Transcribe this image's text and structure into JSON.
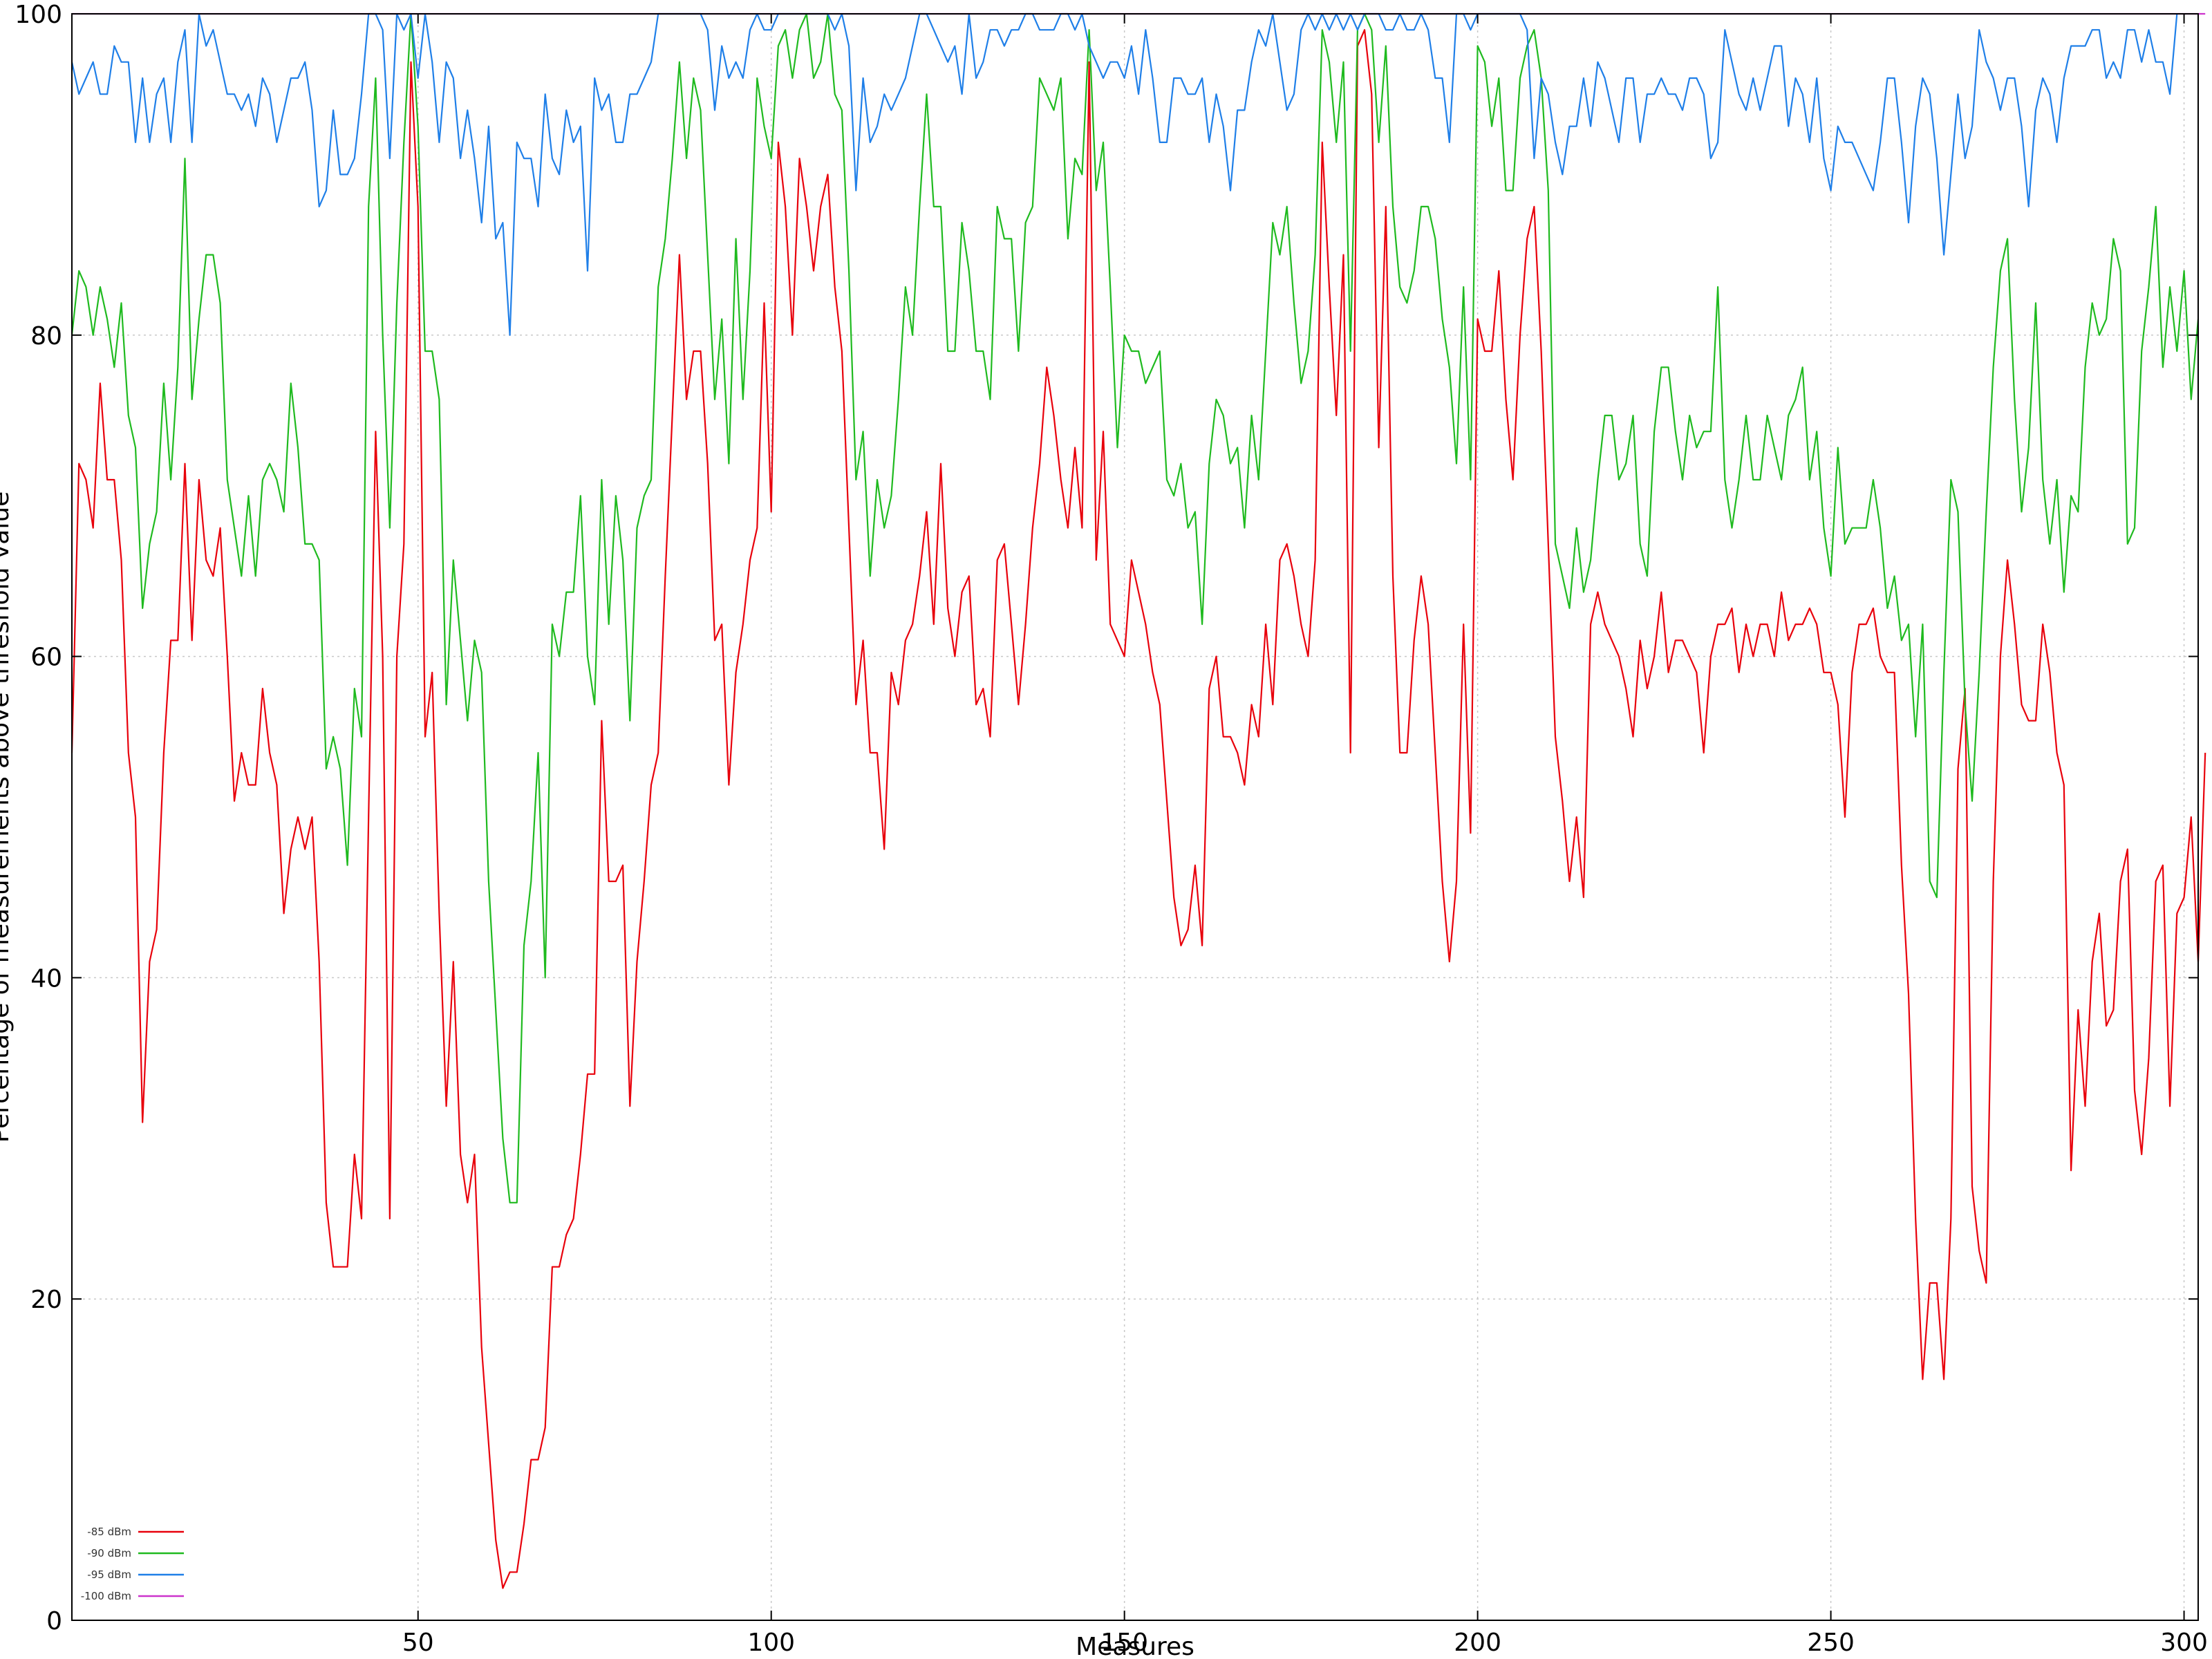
{
  "chart_data": {
    "type": "line",
    "title": "",
    "xlabel": "Measures",
    "ylabel": "Percentage of measurements above threshold value",
    "xlim": [
      1,
      302
    ],
    "ylim": [
      0,
      100
    ],
    "xticks": [
      50,
      100,
      150,
      200,
      250,
      300
    ],
    "yticks": [
      0,
      20,
      40,
      60,
      80,
      100
    ],
    "grid": true,
    "legend_position": "bottom-left",
    "series": [
      {
        "name": "-85 dBm",
        "color": "#e8000b",
        "values": [
          54,
          72,
          71,
          68,
          77,
          71,
          71,
          66,
          54,
          50,
          31,
          41,
          43,
          54,
          61,
          61,
          72,
          61,
          71,
          66,
          65,
          68,
          60,
          51,
          54,
          52,
          52,
          58,
          54,
          52,
          44,
          48,
          50,
          48,
          50,
          41,
          26,
          22,
          22,
          22,
          29,
          25,
          50,
          74,
          60,
          25,
          60,
          67,
          97,
          88,
          55,
          59,
          44,
          32,
          41,
          29,
          26,
          29,
          17,
          11,
          5,
          2,
          3,
          3,
          6,
          10,
          10,
          12,
          22,
          22,
          24,
          25,
          29,
          34,
          34,
          56,
          46,
          46,
          47,
          32,
          41,
          46,
          52,
          54,
          65,
          75,
          85,
          76,
          79,
          79,
          72,
          61,
          62,
          52,
          59,
          62,
          66,
          68,
          82,
          69,
          92,
          88,
          80,
          91,
          88,
          84,
          88,
          90,
          83,
          79,
          68,
          57,
          61,
          54,
          54,
          48,
          59,
          57,
          61,
          62,
          65,
          69,
          62,
          72,
          63,
          60,
          64,
          65,
          57,
          58,
          55,
          66,
          67,
          62,
          57,
          62,
          68,
          72,
          78,
          75,
          71,
          68,
          73,
          68,
          97,
          66,
          74,
          62,
          61,
          60,
          66,
          64,
          62,
          59,
          57,
          51,
          45,
          42,
          43,
          47,
          42,
          58,
          60,
          55,
          55,
          54,
          52,
          57,
          55,
          62,
          57,
          66,
          67,
          65,
          62,
          60,
          66,
          92,
          83,
          75,
          85,
          54,
          98,
          99,
          95,
          73,
          88,
          65,
          54,
          54,
          61,
          65,
          62,
          54,
          46,
          41,
          46,
          62,
          49,
          81,
          79,
          79,
          84,
          76,
          71,
          80,
          86,
          88,
          79,
          67,
          55,
          51,
          46,
          50,
          45,
          62,
          64,
          62,
          61,
          60,
          58,
          55,
          61,
          58,
          60,
          64,
          59,
          61,
          61,
          60,
          59,
          54,
          60,
          62,
          62,
          63,
          59,
          62,
          60,
          62,
          62,
          60,
          64,
          61,
          62,
          62,
          63,
          62,
          59,
          59,
          57,
          50,
          59,
          62,
          62,
          63,
          60,
          59,
          59,
          47,
          39,
          25,
          15,
          21,
          21,
          15,
          25,
          53,
          58,
          27,
          23,
          21,
          46,
          60,
          66,
          62,
          57,
          56,
          56,
          62,
          59,
          54,
          52,
          28,
          38,
          32,
          41,
          44,
          37,
          38,
          46,
          48,
          33,
          29,
          35,
          46,
          47,
          32,
          44,
          45,
          50,
          41,
          54
        ]
      },
      {
        "name": "-90 dBm",
        "color": "#1fba1f",
        "values": [
          80,
          84,
          83,
          80,
          83,
          81,
          78,
          82,
          75,
          73,
          63,
          67,
          69,
          77,
          71,
          78,
          91,
          76,
          81,
          85,
          85,
          82,
          71,
          68,
          65,
          70,
          65,
          71,
          72,
          71,
          69,
          77,
          73,
          67,
          67,
          66,
          53,
          55,
          53,
          47,
          58,
          55,
          88,
          96,
          80,
          68,
          82,
          92,
          100,
          93,
          79,
          79,
          76,
          57,
          66,
          61,
          56,
          61,
          59,
          46,
          38,
          30,
          26,
          26,
          42,
          46,
          54,
          40,
          62,
          60,
          64,
          64,
          70,
          60,
          57,
          71,
          62,
          70,
          66,
          56,
          68,
          70,
          71,
          83,
          86,
          91,
          97,
          91,
          96,
          94,
          85,
          76,
          81,
          72,
          86,
          76,
          84,
          96,
          93,
          91,
          98,
          99,
          96,
          99,
          100,
          96,
          97,
          100,
          95,
          94,
          84,
          71,
          74,
          65,
          71,
          68,
          70,
          76,
          83,
          80,
          88,
          95,
          88,
          88,
          79,
          79,
          87,
          84,
          79,
          79,
          76,
          88,
          86,
          86,
          79,
          87,
          88,
          96,
          95,
          94,
          96,
          86,
          91,
          90,
          99,
          89,
          92,
          83,
          73,
          80,
          79,
          79,
          77,
          78,
          79,
          71,
          70,
          72,
          68,
          69,
          62,
          72,
          76,
          75,
          72,
          73,
          68,
          75,
          71,
          79,
          87,
          85,
          88,
          82,
          77,
          79,
          85,
          99,
          97,
          92,
          97,
          79,
          99,
          100,
          99,
          92,
          98,
          88,
          83,
          82,
          84,
          88,
          88,
          86,
          81,
          78,
          72,
          83,
          71,
          98,
          97,
          93,
          96,
          89,
          89,
          96,
          98,
          99,
          96,
          89,
          67,
          65,
          63,
          68,
          64,
          66,
          71,
          75,
          75,
          71,
          72,
          75,
          67,
          65,
          74,
          78,
          78,
          74,
          71,
          75,
          73,
          74,
          74,
          83,
          71,
          68,
          71,
          75,
          71,
          71,
          75,
          73,
          71,
          75,
          76,
          78,
          71,
          74,
          68,
          65,
          73,
          67,
          68,
          68,
          68,
          71,
          68,
          63,
          65,
          61,
          62,
          55,
          62,
          46,
          45,
          59,
          71,
          69,
          57,
          51,
          59,
          69,
          78,
          84,
          86,
          76,
          69,
          73,
          82,
          71,
          67,
          71,
          64,
          70,
          69,
          78,
          82,
          80,
          81,
          86,
          84,
          67,
          68,
          79,
          83,
          88,
          78,
          83,
          79,
          84,
          76,
          81
        ]
      },
      {
        "name": "-95 dBm",
        "color": "#1f7fe8",
        "values": [
          97,
          95,
          96,
          97,
          95,
          95,
          98,
          97,
          97,
          92,
          96,
          92,
          95,
          96,
          92,
          97,
          99,
          92,
          100,
          98,
          99,
          97,
          95,
          95,
          94,
          95,
          93,
          96,
          95,
          92,
          94,
          96,
          96,
          97,
          94,
          88,
          89,
          94,
          90,
          90,
          91,
          95,
          100,
          100,
          99,
          91,
          100,
          99,
          100,
          96,
          100,
          97,
          92,
          97,
          96,
          91,
          94,
          91,
          87,
          93,
          86,
          87,
          80,
          92,
          91,
          91,
          88,
          95,
          91,
          90,
          94,
          92,
          93,
          84,
          96,
          94,
          95,
          92,
          92,
          95,
          95,
          96,
          97,
          100,
          100,
          100,
          100,
          100,
          100,
          100,
          99,
          94,
          98,
          96,
          97,
          96,
          99,
          100,
          99,
          99,
          100,
          100,
          100,
          100,
          100,
          100,
          100,
          100,
          99,
          100,
          98,
          89,
          96,
          92,
          93,
          95,
          94,
          95,
          96,
          98,
          100,
          100,
          99,
          98,
          97,
          98,
          95,
          100,
          96,
          97,
          99,
          99,
          98,
          99,
          99,
          100,
          100,
          99,
          99,
          99,
          100,
          100,
          99,
          100,
          98,
          97,
          96,
          97,
          97,
          96,
          98,
          95,
          99,
          96,
          92,
          92,
          96,
          96,
          95,
          95,
          96,
          92,
          95,
          93,
          89,
          94,
          94,
          97,
          99,
          98,
          100,
          97,
          94,
          95,
          99,
          100,
          99,
          100,
          99,
          100,
          99,
          100,
          99,
          100,
          100,
          100,
          99,
          99,
          100,
          99,
          99,
          100,
          99,
          96,
          96,
          92,
          100,
          100,
          99,
          100,
          100,
          100,
          100,
          100,
          100,
          100,
          99,
          91,
          96,
          95,
          92,
          90,
          93,
          93,
          96,
          93,
          97,
          96,
          94,
          92,
          96,
          96,
          92,
          95,
          95,
          96,
          95,
          95,
          94,
          96,
          96,
          95,
          91,
          92,
          99,
          97,
          95,
          94,
          96,
          94,
          96,
          98,
          98,
          93,
          96,
          95,
          92,
          96,
          91,
          89,
          93,
          92,
          92,
          91,
          90,
          89,
          92,
          96,
          96,
          92,
          87,
          93,
          96,
          95,
          91,
          85,
          90,
          95,
          91,
          93,
          99,
          97,
          96,
          94,
          96,
          96,
          93,
          88,
          94,
          96,
          95,
          92,
          96,
          98,
          98,
          98,
          99,
          99,
          96,
          97,
          96,
          99,
          99,
          97,
          99,
          97,
          97,
          95,
          100
        ]
      },
      {
        "name": "-100 dBm",
        "color": "#cc33cc",
        "values": [
          100,
          100,
          100,
          100,
          100,
          100,
          100,
          100,
          100,
          100,
          100,
          100,
          100,
          100,
          100,
          100,
          100,
          100,
          100,
          100,
          100,
          100,
          100,
          100,
          100,
          100,
          100,
          100,
          100,
          100,
          100,
          100,
          100,
          100,
          100,
          100,
          100,
          100,
          100,
          100,
          100,
          100,
          100,
          100,
          100,
          100,
          100,
          100,
          100,
          100,
          100,
          100,
          100,
          100,
          100,
          100,
          100,
          100,
          100,
          100,
          100,
          100,
          100,
          100,
          100,
          100,
          100,
          100,
          100,
          100,
          100,
          100,
          100,
          100,
          100,
          100,
          100,
          100,
          100,
          100,
          100,
          100,
          100,
          100,
          100,
          100,
          100,
          100,
          100,
          100,
          100,
          100,
          100,
          100,
          100,
          100,
          100,
          100,
          100,
          100,
          100,
          100,
          100,
          100,
          100,
          100,
          100,
          100,
          100,
          100,
          100,
          100,
          100,
          100,
          100,
          100,
          100,
          100,
          100,
          100,
          100,
          100,
          100,
          100,
          100,
          100,
          100,
          100,
          100,
          100,
          100,
          100,
          100,
          100,
          100,
          100,
          100,
          100,
          100,
          100,
          100,
          100,
          100,
          100,
          100,
          100,
          100,
          100,
          100,
          100,
          100,
          100,
          100,
          100,
          100,
          100,
          100,
          100,
          100,
          100,
          100,
          100,
          100,
          100,
          100,
          100,
          100,
          100,
          100,
          100,
          100,
          100,
          100,
          100,
          100,
          100,
          100,
          100,
          100,
          100,
          100,
          100,
          100,
          100,
          100,
          100,
          100,
          100,
          100,
          100,
          100,
          100,
          100,
          100,
          100,
          100,
          100,
          100,
          100,
          100,
          100,
          100,
          100,
          100,
          100,
          100,
          100,
          100,
          100,
          100,
          100,
          100,
          100,
          100,
          100,
          100,
          100,
          100,
          100,
          100,
          100,
          100,
          100,
          100,
          100,
          100,
          100,
          100,
          100,
          100,
          100,
          100,
          100,
          100,
          100,
          100,
          100,
          100,
          100,
          100,
          100,
          100,
          100,
          100,
          100,
          100,
          100,
          100,
          100,
          100,
          100,
          100,
          100,
          100,
          100,
          100,
          100,
          100,
          100,
          100,
          100,
          100,
          100,
          100,
          100,
          100,
          100,
          100,
          100,
          100,
          100,
          100,
          100,
          100,
          100,
          100,
          100,
          100,
          100,
          100,
          100,
          100,
          100,
          100,
          100,
          100,
          100,
          100,
          100,
          100,
          100,
          100,
          100,
          100,
          100,
          100,
          100,
          100,
          100,
          100,
          100,
          100,
          100
        ]
      }
    ]
  }
}
